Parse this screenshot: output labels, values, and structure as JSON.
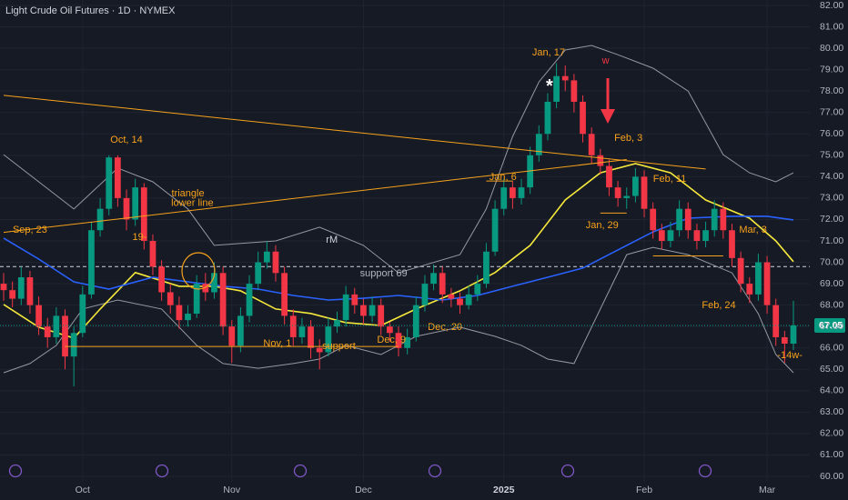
{
  "chart_data": {
    "type": "candlestick",
    "title": "Light Crude Oil Futures · 1D · NYMEX",
    "categories": [
      null,
      null,
      null,
      null,
      null,
      null,
      null,
      null,
      null,
      "Oct",
      null,
      null,
      null,
      null,
      null,
      null,
      null,
      null,
      null,
      null,
      null,
      null,
      null,
      null,
      null,
      null,
      "Nov",
      null,
      null,
      null,
      null,
      null,
      null,
      null,
      null,
      null,
      null,
      null,
      null,
      null,
      null,
      "Dec",
      null,
      null,
      null,
      null,
      null,
      null,
      null,
      null,
      null,
      null,
      null,
      null,
      null,
      null,
      null,
      "2025",
      null,
      null,
      null,
      null,
      null,
      null,
      null,
      null,
      null,
      null,
      null,
      null,
      null,
      null,
      null,
      "Feb",
      null,
      null,
      null,
      null,
      null,
      null,
      null,
      null,
      null,
      null,
      null,
      null,
      null,
      "Mar",
      null,
      null,
      null
    ],
    "open": [
      69.0,
      68.7,
      68.3,
      69.3,
      68.0,
      67.0,
      66.5,
      67.5,
      65.6,
      66.7,
      68.5,
      71.5,
      72.5,
      74.9,
      73.0,
      72.0,
      73.5,
      71.0,
      69.8,
      68.6,
      68.0,
      67.3,
      67.6,
      69.0,
      68.6,
      69.5,
      67.0,
      66.1,
      67.5,
      69.0,
      70.0,
      70.5,
      69.5,
      67.5,
      66.5,
      67.0,
      66.0,
      65.8,
      67.0,
      67.3,
      68.5,
      68.0,
      67.5,
      68.0,
      67.0,
      66.7,
      66.0,
      66.5,
      68.0,
      69.0,
      69.5,
      68.5,
      68.3,
      68.0,
      68.5,
      69.0,
      70.5,
      72.5,
      73.5,
      73.0,
      73.5,
      75.0,
      76.0,
      77.5,
      78.7,
      78.5,
      77.5,
      76.0,
      75.0,
      74.5,
      73.5,
      73.0,
      73.1,
      74.0,
      72.5,
      71.5,
      71.0,
      71.5,
      72.5,
      71.5,
      71.0,
      71.5,
      72.5,
      71.5,
      70.2,
      69.0,
      68.5,
      70.0,
      68.0,
      66.5,
      66.2
    ],
    "high": [
      69.5,
      69.1,
      69.8,
      69.6,
      68.4,
      67.4,
      67.9,
      67.8,
      67.0,
      68.9,
      71.9,
      73.0,
      75.0,
      75.0,
      73.4,
      73.9,
      73.7,
      71.3,
      70.1,
      69.0,
      68.4,
      68.0,
      69.4,
      69.5,
      70.0,
      69.8,
      67.3,
      67.9,
      69.4,
      70.5,
      71.0,
      70.8,
      69.8,
      67.8,
      67.4,
      67.3,
      66.4,
      67.4,
      67.7,
      68.9,
      68.8,
      68.3,
      68.4,
      68.3,
      67.2,
      67.0,
      66.9,
      68.4,
      69.4,
      69.9,
      69.8,
      68.8,
      68.6,
      68.9,
      69.4,
      70.9,
      72.9,
      73.9,
      73.8,
      73.9,
      75.4,
      76.4,
      77.9,
      79.3,
      79.2,
      78.8,
      77.8,
      76.3,
      75.3,
      74.8,
      73.8,
      73.5,
      74.4,
      74.3,
      72.8,
      71.8,
      71.9,
      72.9,
      72.8,
      71.8,
      71.9,
      72.9,
      72.8,
      71.8,
      70.5,
      69.3,
      70.4,
      70.3,
      68.3,
      66.8,
      68.2
    ],
    "low": [
      68.2,
      67.9,
      68.0,
      67.6,
      66.6,
      66.0,
      66.2,
      65.0,
      64.2,
      66.5,
      68.3,
      71.2,
      72.2,
      72.6,
      71.5,
      71.7,
      70.6,
      69.4,
      68.2,
      67.6,
      66.9,
      67.0,
      67.4,
      68.2,
      68.3,
      66.6,
      65.3,
      65.8,
      67.2,
      68.7,
      69.7,
      69.1,
      67.1,
      66.1,
      66.2,
      65.5,
      65.0,
      65.6,
      66.7,
      67.0,
      67.6,
      67.1,
      67.2,
      66.6,
      66.3,
      65.6,
      65.7,
      66.3,
      67.7,
      68.7,
      68.1,
      67.9,
      67.6,
      67.8,
      68.2,
      68.8,
      70.3,
      72.2,
      72.5,
      72.7,
      73.2,
      74.7,
      75.7,
      77.2,
      78.0,
      77.0,
      75.6,
      74.6,
      74.1,
      73.1,
      72.6,
      72.5,
      72.8,
      72.1,
      71.1,
      70.6,
      70.7,
      71.2,
      71.1,
      70.6,
      70.7,
      71.2,
      71.1,
      69.8,
      68.6,
      68.1,
      68.2,
      67.6,
      66.1,
      65.3,
      65.9
    ],
    "close": [
      68.7,
      68.3,
      69.3,
      68.0,
      67.0,
      66.5,
      67.5,
      65.6,
      66.7,
      68.5,
      71.5,
      72.5,
      74.9,
      73.0,
      72.0,
      73.5,
      71.0,
      69.8,
      68.6,
      68.0,
      67.3,
      67.6,
      69.0,
      68.6,
      69.5,
      67.0,
      66.1,
      67.5,
      69.0,
      70.0,
      70.5,
      69.5,
      67.5,
      66.5,
      67.0,
      66.0,
      65.8,
      67.0,
      67.3,
      68.5,
      68.0,
      67.5,
      68.0,
      67.0,
      66.7,
      66.0,
      66.5,
      68.0,
      69.0,
      69.5,
      68.5,
      68.3,
      68.0,
      68.5,
      69.0,
      70.5,
      72.5,
      73.5,
      73.0,
      73.5,
      75.0,
      76.0,
      77.5,
      78.7,
      78.5,
      77.5,
      76.0,
      75.0,
      74.5,
      73.5,
      73.0,
      73.1,
      74.0,
      72.5,
      71.5,
      71.0,
      71.5,
      72.5,
      71.5,
      71.0,
      71.5,
      72.5,
      71.5,
      70.2,
      69.0,
      68.5,
      70.0,
      68.0,
      66.5,
      66.2,
      67.05
    ],
    "up_color": "#089981",
    "down_color": "#f23645",
    "ylim": [
      60,
      82
    ],
    "yticks": [
      {
        "value": 82,
        "label": "82.00"
      },
      {
        "value": 81,
        "label": "81.00"
      },
      {
        "value": 80,
        "label": "80.00"
      },
      {
        "value": 79,
        "label": "79.00"
      },
      {
        "value": 78,
        "label": "78.00"
      },
      {
        "value": 77,
        "label": "77.00"
      },
      {
        "value": 76,
        "label": "76.00"
      },
      {
        "value": 75,
        "label": "75.00"
      },
      {
        "value": 74,
        "label": "74.00"
      },
      {
        "value": 73,
        "label": "73.00"
      },
      {
        "value": 72,
        "label": "72.00"
      },
      {
        "value": 71,
        "label": "71.00"
      },
      {
        "value": 70,
        "label": "70.00"
      },
      {
        "value": 69,
        "label": "69.00"
      },
      {
        "value": 68,
        "label": "68.00"
      },
      {
        "value": 67,
        "label": "67.00"
      },
      {
        "value": 66,
        "label": "66.00"
      },
      {
        "value": 65,
        "label": "65.00"
      },
      {
        "value": 64,
        "label": "64.00"
      },
      {
        "value": 63,
        "label": "63.00"
      },
      {
        "value": 62,
        "label": "62.00"
      },
      {
        "value": 61,
        "label": "61.00"
      },
      {
        "value": 60,
        "label": "60.00"
      }
    ],
    "grid": true,
    "last_price": 67.05,
    "hline": 69.8,
    "overlays": [
      {
        "color": "#9598a1",
        "x": [
          0,
          4,
          8,
          13,
          17,
          21,
          24,
          31,
          36,
          41,
          45,
          52,
          55,
          58,
          61,
          64,
          67,
          70,
          74,
          78,
          82,
          85,
          88,
          90
        ],
        "values": [
          75.03,
          73.76,
          72.49,
          74.4,
          73.76,
          72.49,
          70.79,
          71.0,
          71.64,
          70.79,
          69.51,
          70.36,
          72.49,
          75.88,
          78.43,
          79.92,
          80.13,
          79.7,
          79.07,
          78.0,
          75.03,
          74.18,
          73.76,
          74.18
        ]
      },
      {
        "color": "#9598a1",
        "x": [
          0,
          3,
          6,
          9,
          13,
          18,
          22,
          25,
          29,
          33,
          36,
          39,
          43,
          47,
          52,
          56,
          59,
          62,
          65,
          68,
          71,
          74,
          78,
          83,
          86,
          88,
          90
        ],
        "values": [
          64.84,
          65.27,
          66.12,
          67.82,
          68.24,
          67.82,
          66.12,
          65.27,
          65.05,
          65.27,
          65.48,
          66.12,
          65.69,
          66.54,
          66.97,
          66.54,
          66.12,
          65.48,
          65.27,
          67.82,
          70.36,
          70.7,
          70.36,
          69.51,
          67.6,
          65.69,
          64.84
        ]
      },
      {
        "color": "#f5e83b",
        "x": [
          0,
          4,
          8,
          11,
          15,
          20,
          24,
          27,
          31,
          35,
          39,
          43,
          47,
          52,
          56,
          60,
          64,
          68,
          72,
          76,
          80,
          85,
          88,
          90
        ],
        "values": [
          68.03,
          66.97,
          66.46,
          67.82,
          69.52,
          68.88,
          68.88,
          68.67,
          67.82,
          67.61,
          67.18,
          67.05,
          67.82,
          68.67,
          69.52,
          70.79,
          72.91,
          74.18,
          74.61,
          74.18,
          72.91,
          72.06,
          71.0,
          70.03
        ]
      },
      {
        "color": "#2962ff",
        "x": [
          0,
          4,
          8,
          12,
          17,
          21,
          25,
          29,
          33,
          37,
          41,
          45,
          50,
          54,
          58,
          62,
          66,
          70,
          74,
          78,
          83,
          87,
          90
        ],
        "values": [
          71.13,
          70.15,
          69.09,
          68.75,
          69.3,
          69.09,
          68.88,
          68.75,
          68.45,
          68.24,
          68.32,
          68.45,
          68.24,
          68.45,
          68.88,
          69.3,
          69.73,
          70.58,
          71.42,
          72.06,
          72.15,
          72.15,
          71.98
        ]
      }
    ],
    "trend_lines": [
      {
        "color": "#f7a21b",
        "x": [
          0,
          80
        ],
        "values": [
          77.8,
          74.36
        ]
      },
      {
        "color": "#f7a21b",
        "x": [
          0,
          71
        ],
        "values": [
          71.4,
          74.8
        ]
      },
      {
        "color": "#f7a21b",
        "x": [
          7,
          45
        ],
        "values": [
          66.07,
          66.07
        ]
      },
      {
        "color": "#f7a21b",
        "x": [
          55,
          58
        ],
        "values": [
          73.8,
          73.8
        ]
      },
      {
        "color": "#f7a21b",
        "x": [
          68,
          71
        ],
        "values": [
          72.3,
          72.3
        ]
      },
      {
        "color": "#f7a21b",
        "x": [
          74,
          82
        ],
        "values": [
          70.3,
          70.3
        ]
      }
    ],
    "annotations": [
      {
        "text": "Sep, 23",
        "x": 3,
        "y": 71.5,
        "color": "#f7a21b"
      },
      {
        "text": "Oct, 14",
        "x": 14,
        "y": 75.7,
        "color": "#f7a21b"
      },
      {
        "text": "19-",
        "x": 15.5,
        "y": 71.17,
        "color": "#f7a21b"
      },
      {
        "text": "triangle",
        "x": 21,
        "y": 73.2,
        "color": "#f7a21b"
      },
      {
        "text": "lower line",
        "x": 21.5,
        "y": 72.75,
        "color": "#f7a21b"
      },
      {
        "text": "rM",
        "x": 37.4,
        "y": 71.04,
        "color": "#d1d4dc"
      },
      {
        "text": "support 69",
        "x": 43.3,
        "y": 69.47,
        "color": "#b2b5be"
      },
      {
        "text": "Nov, 1",
        "x": 31.2,
        "y": 66.2,
        "color": "#f7a21b"
      },
      {
        "text": "support",
        "x": 38.2,
        "y": 66.07,
        "color": "#f7a21b"
      },
      {
        "text": "Dec, 9",
        "x": 44.2,
        "y": 66.37,
        "color": "#f7a21b"
      },
      {
        "text": "Dec, 20",
        "x": 50.3,
        "y": 66.97,
        "color": "#f7a21b"
      },
      {
        "text": "Jan, 6",
        "x": 56.9,
        "y": 73.97,
        "color": "#f7a21b"
      },
      {
        "text": "Jan, 17",
        "x": 62.1,
        "y": 79.79,
        "color": "#f7a21b"
      },
      {
        "text": "*",
        "x": 62.2,
        "y": 78.2,
        "color": "#ffffff"
      },
      {
        "text": "w",
        "x": 68.6,
        "y": 79.4,
        "color": "#f23645"
      },
      {
        "text": "Feb, 3",
        "x": 71.2,
        "y": 75.8,
        "color": "#f7a21b"
      },
      {
        "text": "Jan, 29",
        "x": 68.2,
        "y": 71.72,
        "color": "#f7a21b"
      },
      {
        "text": "Feb, 11",
        "x": 75.9,
        "y": 73.89,
        "color": "#f7a21b"
      },
      {
        "text": "Mar, 3",
        "x": 85.4,
        "y": 71.51,
        "color": "#f7a21b"
      },
      {
        "text": "Feb, 24",
        "x": 81.5,
        "y": 67.98,
        "color": "#f7a21b"
      },
      {
        "text": "-14w-",
        "x": 89.6,
        "y": 65.65,
        "color": "#f7a21b"
      }
    ]
  }
}
